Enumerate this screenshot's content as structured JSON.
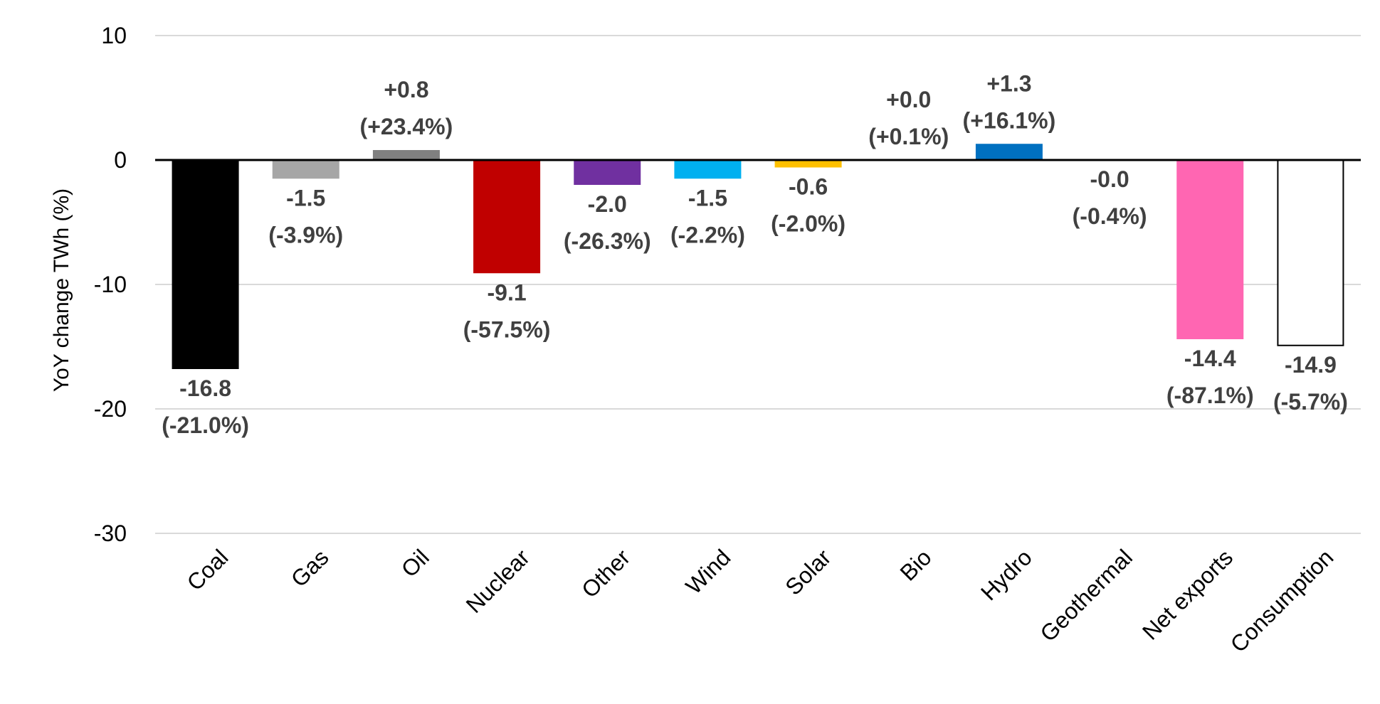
{
  "chart_data": {
    "type": "bar",
    "title": "",
    "xlabel": "",
    "ylabel": "YoY change TWh (%)",
    "ylim": [
      -30,
      10
    ],
    "yticks": [
      10,
      0,
      -10,
      -20,
      -30
    ],
    "grid": true,
    "legend": "none",
    "categories": [
      "Coal",
      "Gas",
      "Oil",
      "Nuclear",
      "Other",
      "Wind",
      "Solar",
      "Bio",
      "Hydro",
      "Geothermal",
      "Net exports",
      "Consumption"
    ],
    "values": [
      -16.8,
      -1.5,
      0.8,
      -9.1,
      -2.0,
      -1.5,
      -0.6,
      0.0,
      1.3,
      -0.0,
      -14.4,
      -14.9
    ],
    "value_labels": [
      "-16.8",
      "-1.5",
      "+0.8",
      "-9.1",
      "-2.0",
      "-1.5",
      "-0.6",
      "+0.0",
      "+1.3",
      "-0.0",
      "-14.4",
      "-14.9"
    ],
    "percent_labels": [
      "(-21.0%)",
      "(-3.9%)",
      "(+23.4%)",
      "(-57.5%)",
      "(-26.3%)",
      "(-2.2%)",
      "(-2.0%)",
      "(+0.1%)",
      "(+16.1%)",
      "(-0.4%)",
      "(-87.1%)",
      "(-5.7%)"
    ],
    "colors": [
      "#000000",
      "#a6a6a6",
      "#808080",
      "#c00000",
      "#7030a0",
      "#00b0f0",
      "#ffc000",
      "#00b050",
      "#0070c0",
      "#00b050",
      "#ff66b2",
      "#ffffff"
    ],
    "outline_colors": [
      "none",
      "none",
      "none",
      "none",
      "none",
      "none",
      "none",
      "none",
      "none",
      "none",
      "none",
      "#000000"
    ]
  }
}
